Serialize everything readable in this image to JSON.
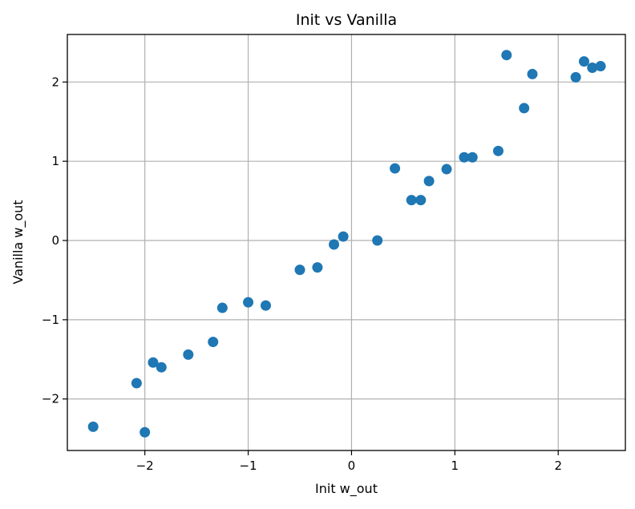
{
  "chart_data": {
    "type": "scatter",
    "title": "Init vs Vanilla",
    "xlabel": "Init w_out",
    "ylabel": "Vanilla w_out",
    "xlim": [
      -2.75,
      2.65
    ],
    "ylim": [
      -2.65,
      2.6
    ],
    "xticks": [
      -2,
      -1,
      0,
      1,
      2
    ],
    "yticks": [
      -2,
      -1,
      0,
      1,
      2
    ],
    "xtick_labels": [
      "−2",
      "−1",
      "0",
      "1",
      "2"
    ],
    "ytick_labels": [
      "−2",
      "−1",
      "0",
      "1",
      "2"
    ],
    "grid": true,
    "marker_color": "#1f77b4",
    "points": [
      {
        "x": -2.5,
        "y": -2.35
      },
      {
        "x": -2.0,
        "y": -2.42
      },
      {
        "x": -2.08,
        "y": -1.8
      },
      {
        "x": -1.92,
        "y": -1.54
      },
      {
        "x": -1.84,
        "y": -1.6
      },
      {
        "x": -1.58,
        "y": -1.44
      },
      {
        "x": -1.34,
        "y": -1.28
      },
      {
        "x": -1.25,
        "y": -0.85
      },
      {
        "x": -1.0,
        "y": -0.78
      },
      {
        "x": -0.83,
        "y": -0.82
      },
      {
        "x": -0.5,
        "y": -0.37
      },
      {
        "x": -0.33,
        "y": -0.34
      },
      {
        "x": -0.17,
        "y": -0.05
      },
      {
        "x": -0.08,
        "y": 0.05
      },
      {
        "x": 0.25,
        "y": 0.0
      },
      {
        "x": 0.42,
        "y": 0.91
      },
      {
        "x": 0.58,
        "y": 0.51
      },
      {
        "x": 0.67,
        "y": 0.51
      },
      {
        "x": 0.75,
        "y": 0.75
      },
      {
        "x": 0.92,
        "y": 0.9
      },
      {
        "x": 1.09,
        "y": 1.05
      },
      {
        "x": 1.17,
        "y": 1.05
      },
      {
        "x": 1.42,
        "y": 1.13
      },
      {
        "x": 1.5,
        "y": 2.34
      },
      {
        "x": 1.67,
        "y": 1.67
      },
      {
        "x": 1.75,
        "y": 2.1
      },
      {
        "x": 2.17,
        "y": 2.06
      },
      {
        "x": 2.25,
        "y": 2.26
      },
      {
        "x": 2.33,
        "y": 2.18
      },
      {
        "x": 2.41,
        "y": 2.2
      }
    ]
  }
}
